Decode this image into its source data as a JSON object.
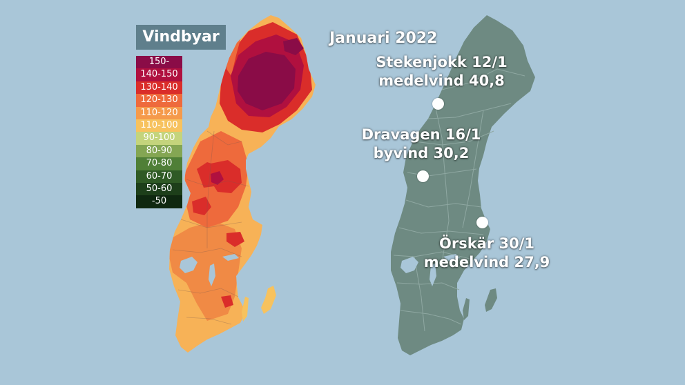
{
  "map_title": "Vindbyar",
  "period": "Januari 2022",
  "legend": [
    {
      "label": "150-",
      "color": "#8a0c47",
      "text_color": "#ffffff"
    },
    {
      "label": "140-150",
      "color": "#b0103f",
      "text_color": "#ffffff"
    },
    {
      "label": "130-140",
      "color": "#da2d2a",
      "text_color": "#ffffff"
    },
    {
      "label": "120-130",
      "color": "#ee6a3c",
      "text_color": "#ffffff"
    },
    {
      "label": "110-120",
      "color": "#f59a4b",
      "text_color": "#ffffff"
    },
    {
      "label": "110-100",
      "color": "#f7c25e",
      "text_color": "#ffffff"
    },
    {
      "label": "90-100",
      "color": "#c4d47c",
      "text_color": "#ffffff"
    },
    {
      "label": "80-90",
      "color": "#84a653",
      "text_color": "#ffffff"
    },
    {
      "label": "70-80",
      "color": "#4f7f37",
      "text_color": "#ffffff"
    },
    {
      "label": "60-70",
      "color": "#2f5a25",
      "text_color": "#ffffff"
    },
    {
      "label": "50-60",
      "color": "#1d3f1a",
      "text_color": "#ffffff"
    },
    {
      "label": "-50",
      "color": "#0f2810",
      "text_color": "#ffffff"
    }
  ],
  "stations": [
    {
      "name": "Stekenjokk 12/1",
      "detail": "medelvind 40,8"
    },
    {
      "name": "Dravagen 16/1",
      "detail": "byvind 30,2"
    },
    {
      "name": "Örskär 30/1",
      "detail": "medelvind 27,9"
    }
  ],
  "colors": {
    "sea": "#a9c6d8",
    "right_map": "#6e8a82",
    "borders": "#8fa8a2",
    "title_box": "#5f7f8c"
  }
}
